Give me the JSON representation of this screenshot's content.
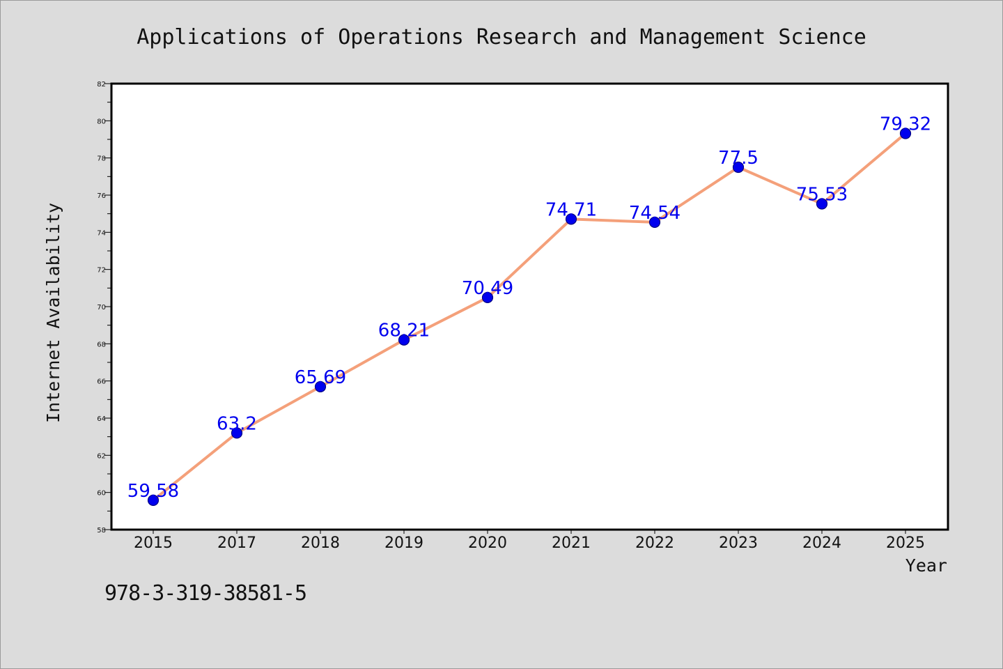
{
  "chart_data": {
    "type": "line",
    "title": "Applications of Operations Research and Management Science",
    "xlabel": "Year",
    "ylabel": "Internet Availability",
    "categories": [
      "2015",
      "2017",
      "2018",
      "2019",
      "2020",
      "2021",
      "2022",
      "2023",
      "2024",
      "2025"
    ],
    "series": [
      {
        "values": [
          59.58,
          63.2,
          65.69,
          68.21,
          70.49,
          74.71,
          74.54,
          77.5,
          75.53,
          79.32
        ],
        "data_labels": [
          "59.58",
          "63.2",
          "65.69",
          "68.21",
          "70.49",
          "74.71",
          "74.54",
          "77.5",
          "75.53",
          "79.32"
        ]
      }
    ],
    "ylim": [
      58,
      82
    ],
    "yticks": [
      "58",
      "60",
      "62",
      "64",
      "66",
      "68",
      "70",
      "72",
      "74",
      "76",
      "78",
      "80",
      "82"
    ],
    "grid": false,
    "colors": {
      "line": "#f4a07a",
      "marker": "#0000ee",
      "marker_edge": "#000080",
      "data_label": "#0000ee",
      "background": "#dcdcdc",
      "plot_background": "#ffffff"
    }
  },
  "footer_text": "978-3-319-38581-5"
}
